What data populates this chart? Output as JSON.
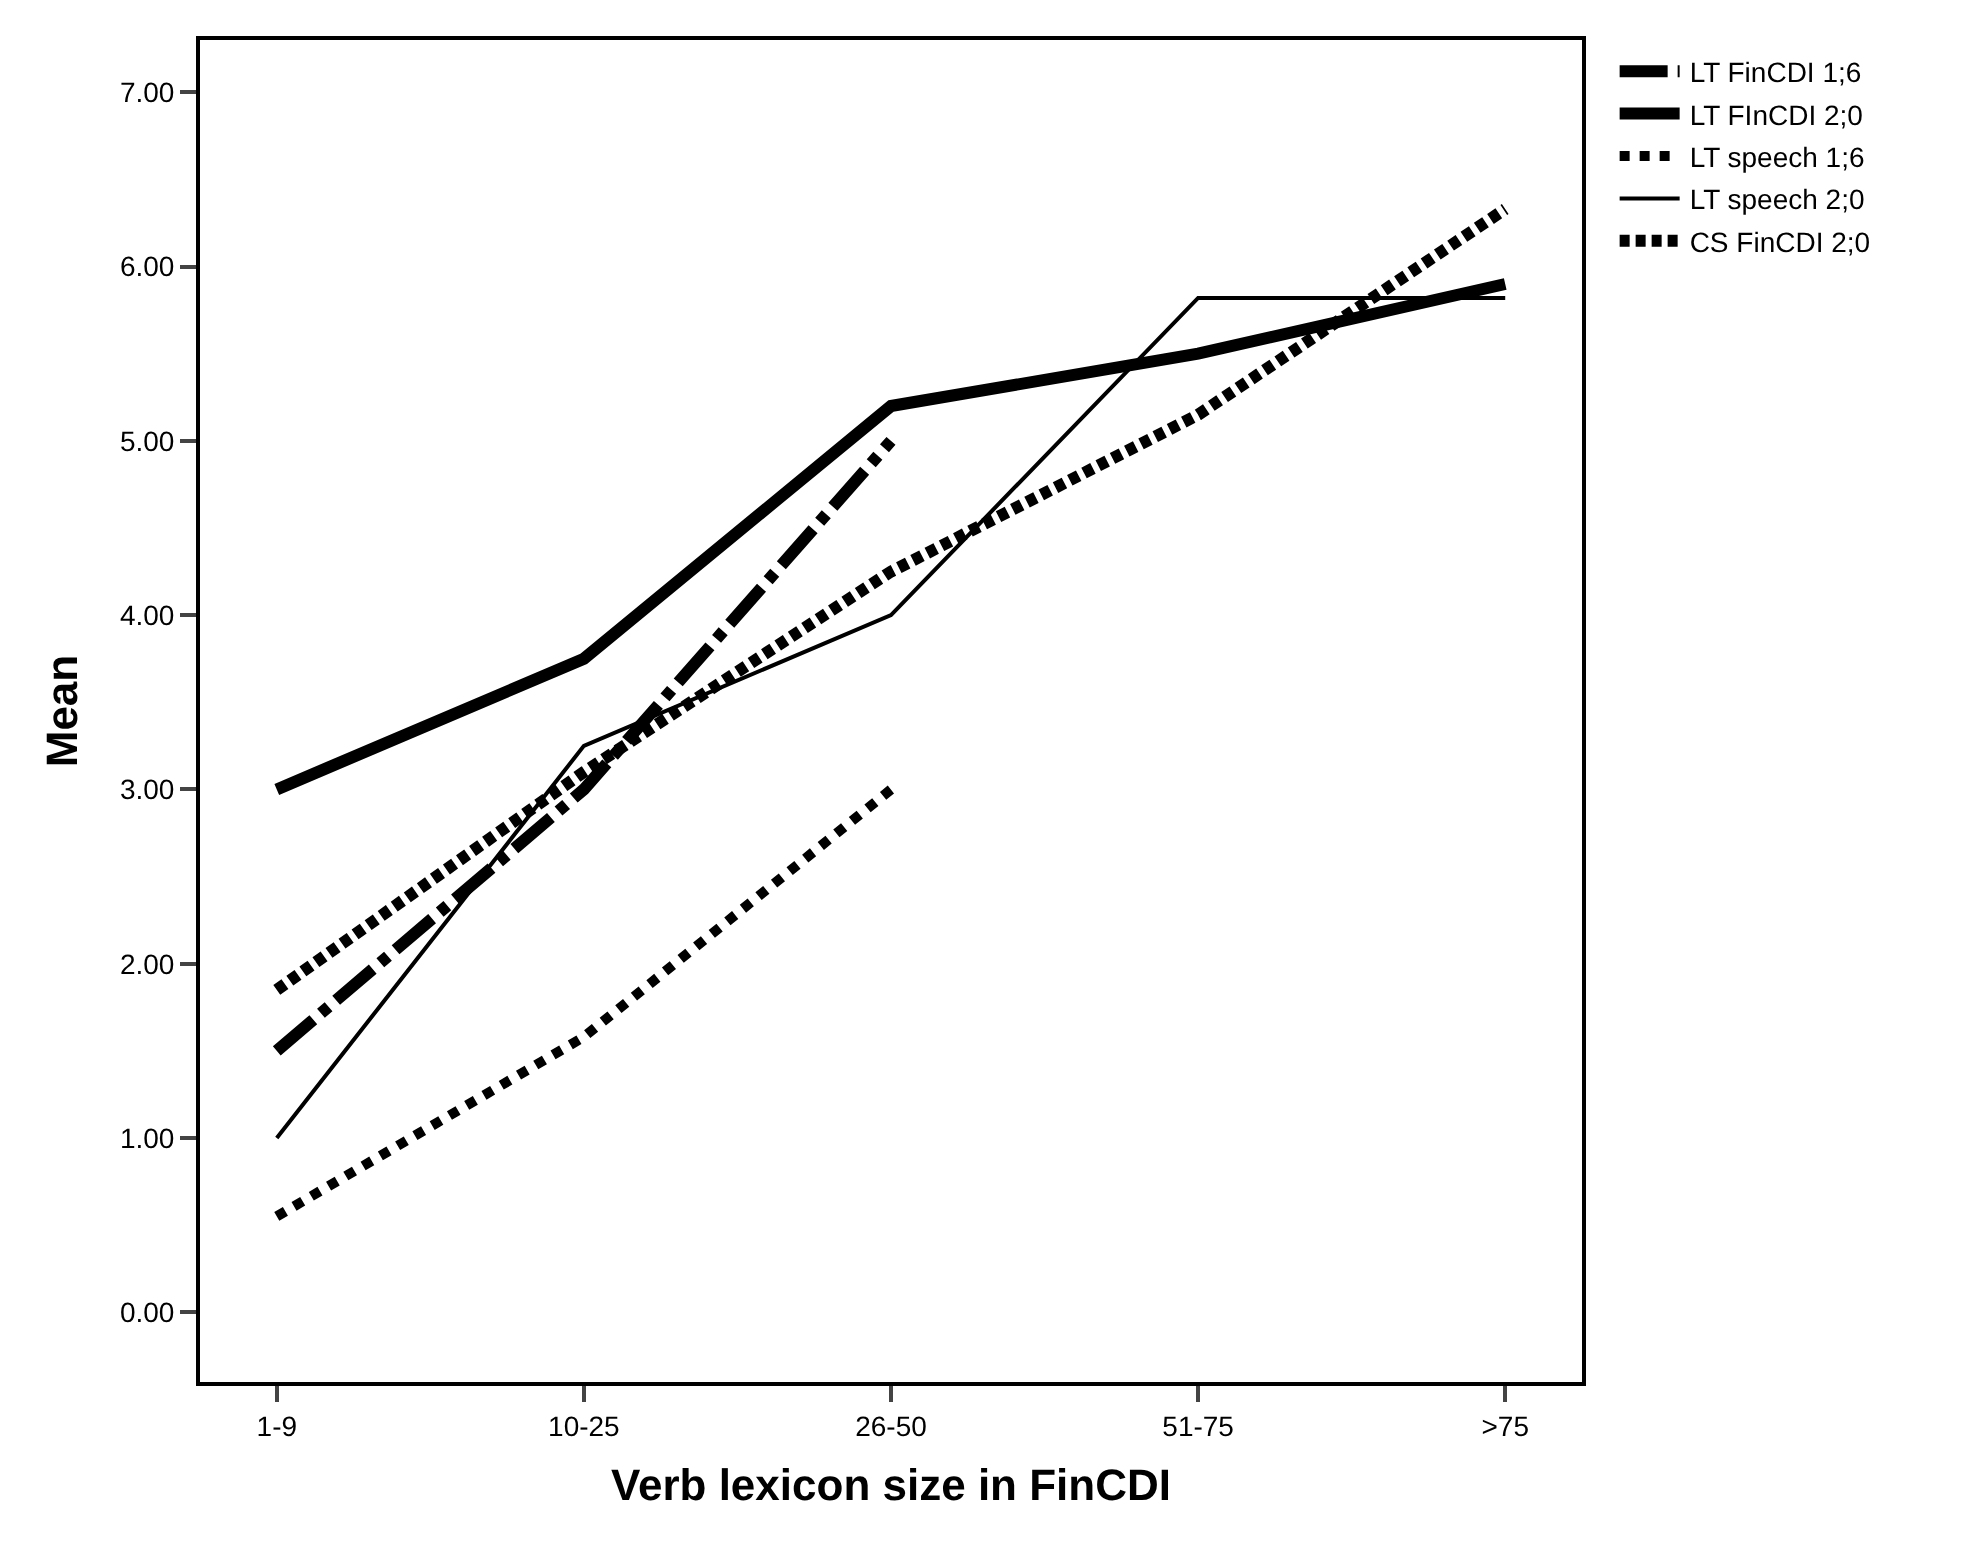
{
  "chart_data": {
    "type": "line",
    "xlabel": "Verb lexicon size in FinCDI",
    "ylabel": "Mean",
    "categories": [
      "1-9",
      "10-25",
      "26-50",
      "51-75",
      ">75"
    ],
    "series": [
      {
        "name": "LT FinCDI 1;6",
        "color": "#000000",
        "line_style": "dashed",
        "values": [
          1.5,
          3.0,
          5.0,
          null,
          null
        ]
      },
      {
        "name": "LT FInCDI 2;0",
        "color": "#000000",
        "line_style": "solid",
        "values": [
          3.0,
          3.75,
          5.2,
          5.5,
          5.9
        ]
      },
      {
        "name": "LT speech 1;6",
        "color": "#000000",
        "line_style": "dotted",
        "values": [
          0.55,
          1.58,
          3.0,
          null,
          null
        ]
      },
      {
        "name": "LT speech 2;0",
        "color": "#000000",
        "line_style": "solid",
        "values": [
          1.0,
          3.25,
          4.0,
          5.82,
          5.82
        ]
      },
      {
        "name": "CS FinCDI 2;0",
        "color": "#000000",
        "line_style": "dotted",
        "values": [
          1.85,
          3.1,
          4.25,
          5.15,
          6.33
        ]
      }
    ],
    "ylim": [
      -0.4,
      7.3
    ],
    "yticks": [
      {
        "value": 0,
        "label": "0.00"
      },
      {
        "value": 1,
        "label": "1.00"
      },
      {
        "value": 2,
        "label": "2.00"
      },
      {
        "value": 3,
        "label": "3.00"
      },
      {
        "value": 4,
        "label": "4.00"
      },
      {
        "value": 5,
        "label": "5.00"
      },
      {
        "value": 6,
        "label": "6.00"
      },
      {
        "value": 7,
        "label": "7.00"
      }
    ],
    "legend": "top right",
    "marker": "none"
  }
}
